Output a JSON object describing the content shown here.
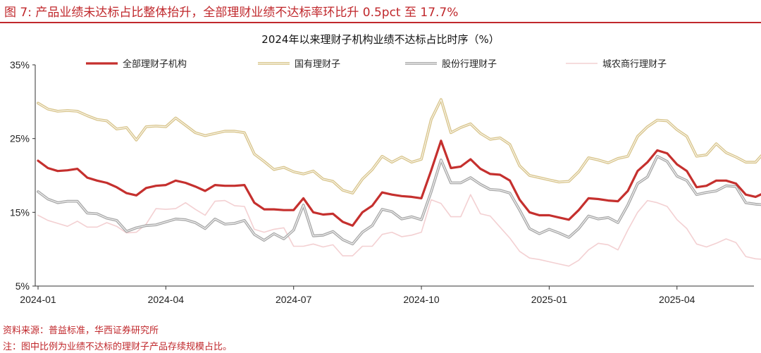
{
  "figure_title": "图 7:  产品业绩未达标占比整体抬升，全部理财业绩不达标率环比升 0.5pct 至 17.7%",
  "source": "资料来源：普益标准，华西证券研究所",
  "note": "注：图中比例为业绩不达标的理财子产品存续规模占比。",
  "colors": {
    "all": "#c5302e",
    "state": "#d8c48a",
    "joint": "#a8a8a8",
    "rural": "#f3d0d2",
    "accent_red": "#c0282c"
  },
  "chart_data": {
    "type": "line",
    "title": "2024年以来理财子机构业绩不达标占比时序（%）",
    "xlabel": "",
    "ylabel": "",
    "ylim": [
      5,
      35
    ],
    "yticks": [
      5,
      15,
      25,
      35
    ],
    "ytick_labels": [
      "5%",
      "15%",
      "25%",
      "35%"
    ],
    "xtick_labels": [
      "2024-01",
      "2024-04",
      "2024-07",
      "2024-10",
      "2025-01",
      "2025-04"
    ],
    "xtick_index": [
      0,
      13,
      26,
      39,
      52,
      65
    ],
    "grid": false,
    "legend_position": "top",
    "series": [
      {
        "name": "全部理财子机构",
        "color_key": "all",
        "values": [
          22.0,
          21.0,
          20.6,
          20.7,
          20.9,
          19.7,
          19.3,
          19.0,
          18.4,
          17.6,
          17.3,
          18.3,
          18.6,
          18.7,
          19.3,
          19.0,
          18.5,
          17.9,
          18.7,
          18.6,
          18.6,
          18.7,
          16.3,
          15.4,
          15.4,
          15.3,
          15.3,
          16.9,
          15.0,
          14.7,
          14.8,
          13.7,
          13.2,
          15.0,
          15.9,
          17.7,
          17.4,
          17.2,
          17.1,
          16.9,
          20.7,
          24.7,
          21.0,
          21.2,
          22.2,
          20.9,
          20.2,
          20.1,
          19.3,
          16.7,
          15.0,
          14.6,
          14.6,
          14.3,
          14.0,
          15.3,
          16.9,
          16.8,
          16.6,
          16.5,
          17.9,
          20.6,
          21.8,
          23.4,
          23.0,
          21.5,
          20.6,
          18.4,
          18.6,
          19.3,
          19.3,
          18.9,
          17.4,
          17.1,
          17.7
        ]
      },
      {
        "name": "国有理财子",
        "color_key": "state",
        "values": [
          29.8,
          29.0,
          28.7,
          28.8,
          28.7,
          28.1,
          27.6,
          27.4,
          26.3,
          26.5,
          24.8,
          26.6,
          26.7,
          26.6,
          27.8,
          26.8,
          25.8,
          25.4,
          25.7,
          26.0,
          26.0,
          25.8,
          22.9,
          21.9,
          20.8,
          21.1,
          20.5,
          20.2,
          20.6,
          19.5,
          19.2,
          18.0,
          17.6,
          19.5,
          20.8,
          22.6,
          21.8,
          22.5,
          21.8,
          22.2,
          27.6,
          30.3,
          25.8,
          26.5,
          27.0,
          25.7,
          24.9,
          25.1,
          24.2,
          21.3,
          20.0,
          19.7,
          19.4,
          19.1,
          19.2,
          20.5,
          22.4,
          22.1,
          21.7,
          22.3,
          22.6,
          25.3,
          26.6,
          27.5,
          27.4,
          26.2,
          25.3,
          22.6,
          22.8,
          24.3,
          23.1,
          22.5,
          21.8,
          21.8,
          23.3
        ]
      },
      {
        "name": "股份行理财子",
        "color_key": "joint",
        "values": [
          17.8,
          16.8,
          16.3,
          16.5,
          16.5,
          14.9,
          14.8,
          14.2,
          13.9,
          12.4,
          12.9,
          13.2,
          13.3,
          13.7,
          14.1,
          14.0,
          13.6,
          12.8,
          14.1,
          13.4,
          13.5,
          13.9,
          12.0,
          11.2,
          12.1,
          11.4,
          12.6,
          16.0,
          11.8,
          11.9,
          12.4,
          11.3,
          10.7,
          12.3,
          13.2,
          15.4,
          15.1,
          14.1,
          14.4,
          14.0,
          17.8,
          22.1,
          19.0,
          19.0,
          19.7,
          18.8,
          18.1,
          18.0,
          17.6,
          15.3,
          12.8,
          12.1,
          12.7,
          12.2,
          11.6,
          12.8,
          14.5,
          14.1,
          14.3,
          13.6,
          16.0,
          18.9,
          19.8,
          22.6,
          21.9,
          19.9,
          19.3,
          17.4,
          17.7,
          17.9,
          18.6,
          18.5,
          16.3,
          16.1,
          16.0
        ]
      },
      {
        "name": "城农商行理财子",
        "color_key": "rural",
        "values": [
          14.6,
          13.9,
          13.5,
          13.1,
          13.8,
          13.0,
          13.0,
          13.6,
          13.1,
          12.2,
          12.3,
          13.4,
          15.5,
          15.4,
          15.5,
          16.3,
          15.4,
          14.6,
          16.5,
          16.6,
          15.9,
          15.8,
          12.7,
          12.3,
          12.7,
          12.9,
          10.4,
          10.4,
          10.7,
          10.3,
          10.6,
          9.1,
          9.1,
          10.4,
          10.4,
          12.0,
          12.3,
          11.7,
          11.9,
          12.3,
          16.7,
          16.2,
          14.4,
          14.4,
          17.4,
          14.8,
          14.5,
          13.0,
          11.5,
          9.7,
          8.8,
          8.6,
          8.3,
          8.0,
          7.7,
          8.5,
          9.9,
          10.8,
          10.6,
          9.9,
          12.6,
          15.0,
          16.6,
          16.3,
          15.8,
          14.0,
          12.8,
          10.7,
          10.3,
          10.8,
          11.4,
          10.9,
          9.0,
          8.7,
          8.6
        ]
      }
    ]
  }
}
